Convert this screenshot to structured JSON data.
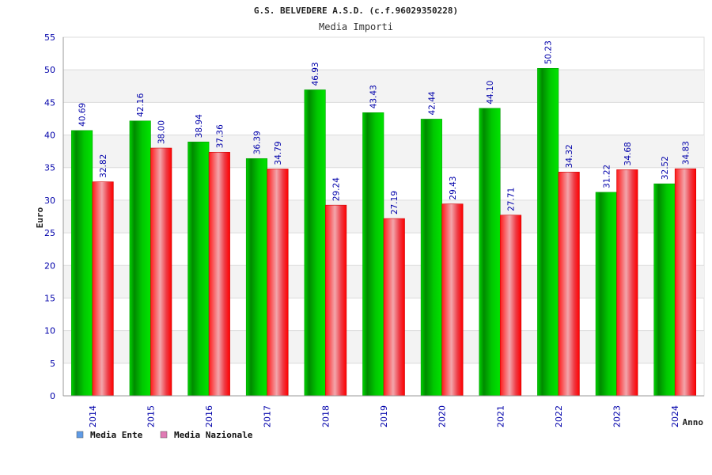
{
  "chart_data": {
    "type": "bar",
    "title": "G.S. BELVEDERE A.S.D. (c.f.96029350228)",
    "subtitle": "Media Importi",
    "xlabel": "Anno",
    "ylabel": "Euro",
    "ylim": [
      0,
      55
    ],
    "yticks": [
      "0",
      "5",
      "10",
      "15",
      "20",
      "25",
      "30",
      "35",
      "40",
      "45",
      "50",
      "55"
    ],
    "categories": [
      "2014",
      "2015",
      "2016",
      "2017",
      "2018",
      "2019",
      "2020",
      "2021",
      "2022",
      "2023",
      "2024"
    ],
    "series": [
      {
        "name": "Media Ente",
        "values": [
          40.69,
          42.16,
          38.94,
          36.39,
          46.93,
          43.43,
          42.44,
          44.1,
          50.23,
          31.22,
          32.52
        ],
        "labels": [
          "40.69",
          "42.16",
          "38.94",
          "36.39",
          "46.93",
          "43.43",
          "42.44",
          "44.10",
          "50.23",
          "31.22",
          "32.52"
        ],
        "bar_color": "#00b400",
        "legend_color": "#5f9be6"
      },
      {
        "name": "Media Nazionale",
        "values": [
          32.82,
          38.0,
          37.36,
          34.79,
          29.24,
          27.19,
          29.43,
          27.71,
          34.32,
          34.68,
          34.83
        ],
        "labels": [
          "32.82",
          "38.00",
          "37.36",
          "34.79",
          "29.24",
          "27.19",
          "29.43",
          "27.71",
          "34.32",
          "34.68",
          "34.83"
        ],
        "bar_color": "#e8202a",
        "legend_color": "#e07ab4"
      }
    ],
    "grid": true,
    "legend": "bottom-left",
    "colors": {
      "axis_text": "#0000aa",
      "title": "#222222",
      "value_label": "#0000aa",
      "band": "#f3f3f3"
    }
  }
}
